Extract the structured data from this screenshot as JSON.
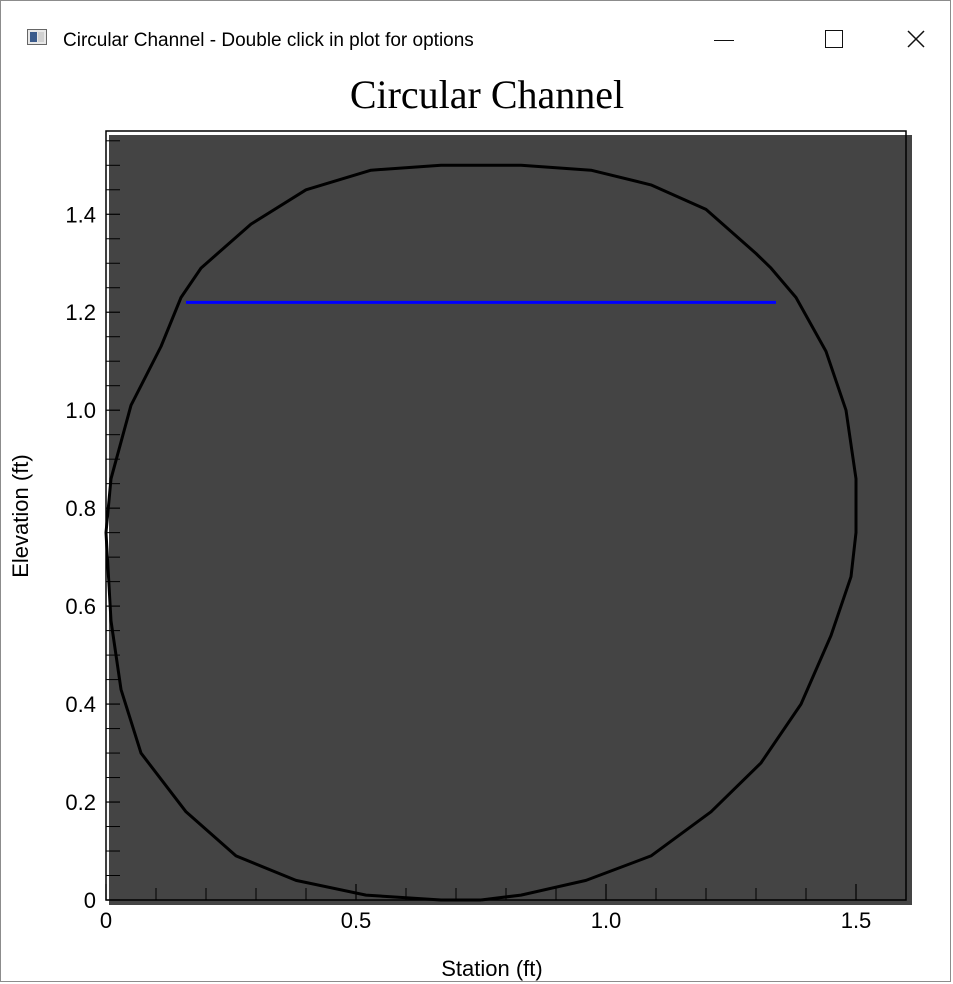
{
  "window": {
    "title": "Circular Channel - Double click in plot for options",
    "icon": "app-window-icon",
    "controls": [
      "minimize-icon",
      "maximize-icon",
      "close-icon"
    ]
  },
  "colors": {
    "curve": "#000000",
    "water_line": "#0000ff",
    "band": "#f7f7f7",
    "background": "#ffffff"
  },
  "chart_data": {
    "type": "line",
    "title": "Circular Channel",
    "xlabel": "Station (ft)",
    "ylabel": "Elevation (ft)",
    "xlim": [
      0,
      1.6
    ],
    "ylim": [
      0,
      1.57
    ],
    "xticks": [
      0,
      0.5,
      1.0,
      1.5
    ],
    "xtick_labels": [
      "0",
      "0.5",
      "1.0",
      "1.5"
    ],
    "yticks": [
      0,
      0.2,
      0.4,
      0.6,
      0.8,
      1.0,
      1.2,
      1.4
    ],
    "ytick_labels": [
      "0",
      "0.2",
      "0.4",
      "0.6",
      "0.8",
      "1.0",
      "1.2",
      "1.4"
    ],
    "grid": "alternating horizontal bands",
    "legend": "none",
    "series": [
      {
        "kind": "channel cross-section",
        "color": "#000000",
        "x": [
          0.75,
          0.83,
          0.96,
          1.09,
          1.21,
          1.31,
          1.39,
          1.45,
          1.49,
          1.5,
          1.5,
          1.48,
          1.44,
          1.38,
          1.33,
          1.3,
          1.2,
          1.09,
          0.97,
          0.83,
          0.75,
          0.67,
          0.53,
          0.4,
          0.29,
          0.19,
          0.15,
          0.11,
          0.05,
          0.01,
          0,
          0.01,
          0.03,
          0.07,
          0.16,
          0.26,
          0.38,
          0.52,
          0.67,
          0.75
        ],
        "y": [
          0,
          0.01,
          0.04,
          0.09,
          0.18,
          0.28,
          0.4,
          0.54,
          0.66,
          0.75,
          0.86,
          1.0,
          1.12,
          1.23,
          1.29,
          1.32,
          1.41,
          1.46,
          1.49,
          1.5,
          1.5,
          1.5,
          1.49,
          1.45,
          1.38,
          1.29,
          1.23,
          1.13,
          1.01,
          0.86,
          0.75,
          0.57,
          0.43,
          0.3,
          0.18,
          0.09,
          0.04,
          0.01,
          0.0,
          0
        ]
      },
      {
        "kind": "water surface",
        "color": "#0000ff",
        "x": [
          0.16,
          1.34
        ],
        "y": [
          1.22,
          1.22
        ]
      }
    ]
  }
}
